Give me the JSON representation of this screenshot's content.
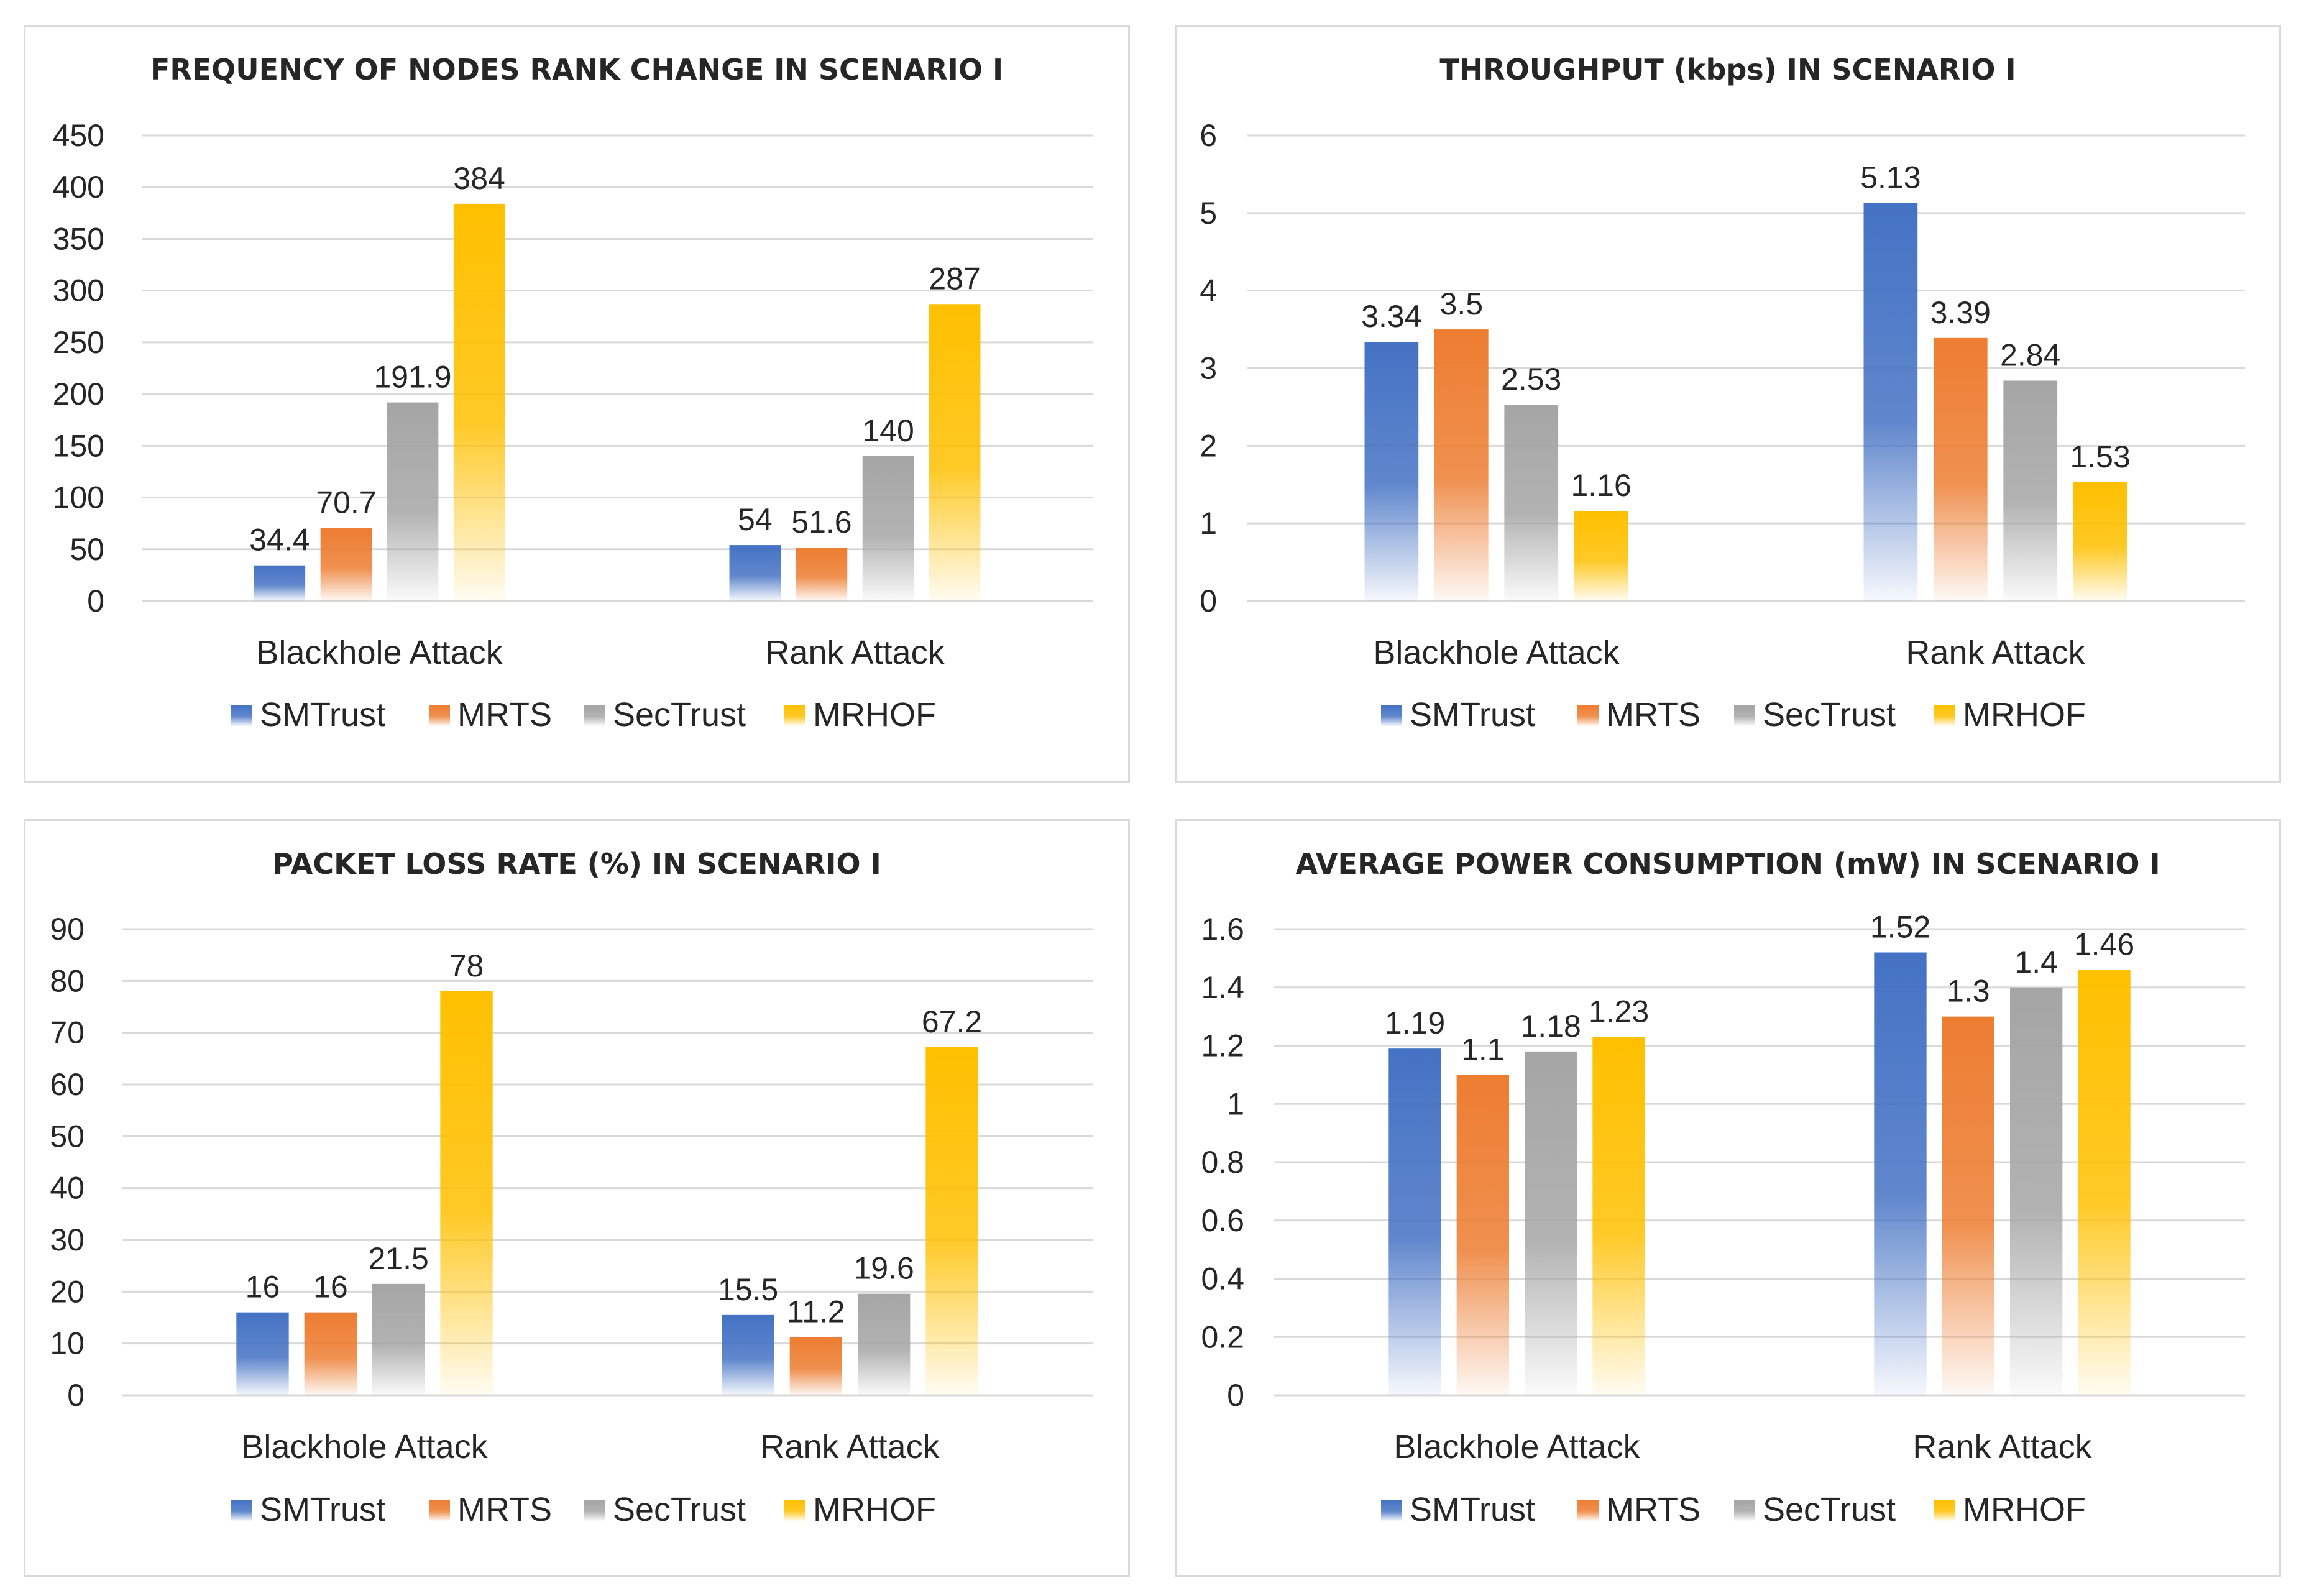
{
  "chart_data": [
    {
      "type": "bar",
      "title": "FREQUENCY OF NODES RANK CHANGE IN SCENARIO I",
      "categories": [
        "Blackhole Attack",
        "Rank Attack"
      ],
      "series": [
        {
          "name": "SMTrust",
          "values": [
            34.4,
            54
          ],
          "labels": [
            "34.4",
            "54"
          ]
        },
        {
          "name": "MRTS",
          "values": [
            70.7,
            51.6
          ],
          "labels": [
            "70.7",
            "51.6"
          ]
        },
        {
          "name": "SecTrust",
          "values": [
            191.9,
            140
          ],
          "labels": [
            "191.9",
            "140"
          ]
        },
        {
          "name": "MRHOF",
          "values": [
            384,
            287
          ],
          "labels": [
            "384",
            "287"
          ]
        }
      ],
      "ylim": [
        0,
        450
      ],
      "yticks": [
        "0",
        "50",
        "100",
        "150",
        "200",
        "250",
        "300",
        "350",
        "400",
        "450"
      ],
      "legend": "bottom"
    },
    {
      "type": "bar",
      "title": "THROUGHPUT (kbps) IN SCENARIO I",
      "categories": [
        "Blackhole Attack",
        "Rank Attack"
      ],
      "series": [
        {
          "name": "SMTrust",
          "values": [
            3.34,
            5.13
          ],
          "labels": [
            "3.34",
            "5.13"
          ]
        },
        {
          "name": "MRTS",
          "values": [
            3.5,
            3.39
          ],
          "labels": [
            "3.5",
            "3.39"
          ]
        },
        {
          "name": "SecTrust",
          "values": [
            2.53,
            2.84
          ],
          "labels": [
            "2.53",
            "2.84"
          ]
        },
        {
          "name": "MRHOF",
          "values": [
            1.16,
            1.53
          ],
          "labels": [
            "1.16",
            "1.53"
          ]
        }
      ],
      "ylim": [
        0,
        6
      ],
      "yticks": [
        "0",
        "1",
        "2",
        "3",
        "4",
        "5",
        "6"
      ],
      "legend": "bottom"
    },
    {
      "type": "bar",
      "title": "PACKET LOSS RATE (%) IN SCENARIO I",
      "categories": [
        "Blackhole Attack",
        "Rank Attack"
      ],
      "series": [
        {
          "name": "SMTrust",
          "values": [
            16,
            15.5
          ],
          "labels": [
            "16",
            "15.5"
          ]
        },
        {
          "name": "MRTS",
          "values": [
            16,
            11.2
          ],
          "labels": [
            "16",
            "11.2"
          ]
        },
        {
          "name": "SecTrust",
          "values": [
            21.5,
            19.6
          ],
          "labels": [
            "21.5",
            "19.6"
          ]
        },
        {
          "name": "MRHOF",
          "values": [
            78,
            67.2
          ],
          "labels": [
            "78",
            "67.2"
          ]
        }
      ],
      "ylim": [
        0,
        90
      ],
      "yticks": [
        "0",
        "10",
        "20",
        "30",
        "40",
        "50",
        "60",
        "70",
        "80",
        "90"
      ],
      "legend": "bottom"
    },
    {
      "type": "bar",
      "title": "AVERAGE POWER CONSUMPTION (mW) IN SCENARIO I",
      "categories": [
        "Blackhole Attack",
        "Rank Attack"
      ],
      "series": [
        {
          "name": "SMTrust",
          "values": [
            1.19,
            1.52
          ],
          "labels": [
            "1.19",
            "1.52"
          ]
        },
        {
          "name": "MRTS",
          "values": [
            1.1,
            1.3
          ],
          "labels": [
            "1.1",
            "1.3"
          ]
        },
        {
          "name": "SecTrust",
          "values": [
            1.18,
            1.4
          ],
          "labels": [
            "1.18",
            "1.4"
          ]
        },
        {
          "name": "MRHOF",
          "values": [
            1.23,
            1.46
          ],
          "labels": [
            "1.23",
            "1.46"
          ]
        }
      ],
      "ylim": [
        0,
        1.6
      ],
      "yticks": [
        "0",
        "0.2",
        "0.4",
        "0.6",
        "0.8",
        "1",
        "1.2",
        "1.4",
        "1.6"
      ],
      "legend": "bottom"
    }
  ],
  "colors": {
    "SMTrust": "#4472c4",
    "MRTS": "#ed7d31",
    "SecTrust": "#a5a5a5",
    "MRHOF": "#ffc000"
  }
}
